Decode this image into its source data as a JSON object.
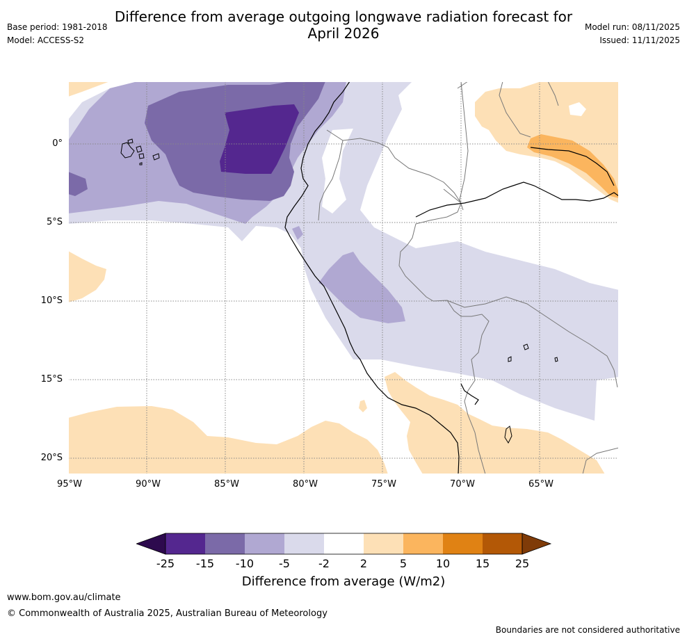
{
  "header": {
    "title_line1": "Difference from average outgoing longwave radiation forecast for",
    "title_line2": "April 2026",
    "base_period": "Base period: 1981-2018",
    "model": "Model: ACCESS-S2",
    "model_run": "Model run: 08/11/2025",
    "issued": "Issued: 11/11/2025"
  },
  "map": {
    "lat_labels": [
      "0°",
      "5°S",
      "10°S",
      "15°S",
      "20°S"
    ],
    "lon_labels": [
      "95°W",
      "90°W",
      "85°W",
      "80°W",
      "75°W",
      "70°W",
      "65°W"
    ]
  },
  "legend": {
    "ticks": [
      "-25",
      "-15",
      "-10",
      "-5",
      "-2",
      "2",
      "5",
      "10",
      "15",
      "25"
    ],
    "colors": [
      "#2d0a4e",
      "#54278f",
      "#7b6aa8",
      "#b0a8d2",
      "#dadaeb",
      "#ffffff",
      "#fde0b6",
      "#fbb55e",
      "#e08214",
      "#b35806",
      "#7f3b08"
    ],
    "label": "Difference from average (W/m2)"
  },
  "footer": {
    "url": "www.bom.gov.au/climate",
    "copyright": "© Commonwealth of Australia 2025, Australian Bureau of Meteorology",
    "disclaimer": "Boundaries are not considered authoritative"
  }
}
